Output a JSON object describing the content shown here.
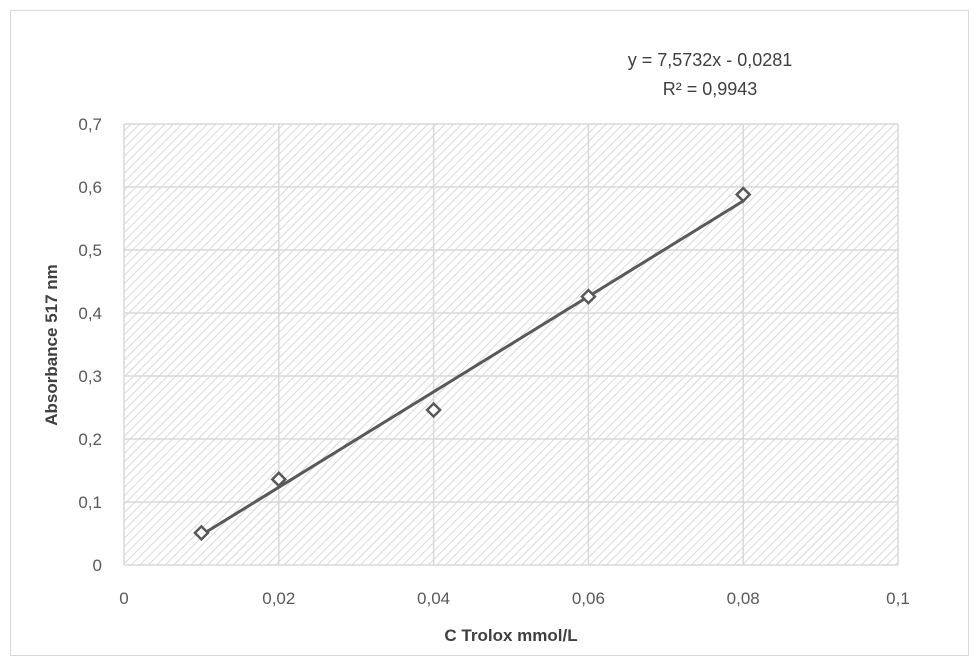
{
  "chart_data": {
    "type": "scatter",
    "xlabel": "C Trolox mmol/L",
    "ylabel": "Absorbance 517 nm",
    "xlim": [
      0,
      0.1
    ],
    "ylim": [
      0,
      0.7
    ],
    "x_ticks": [
      0,
      0.02,
      0.04,
      0.06,
      0.08,
      0.1
    ],
    "y_ticks": [
      0,
      0.1,
      0.2,
      0.3,
      0.4,
      0.5,
      0.6,
      0.7
    ],
    "x_tick_labels": [
      "0",
      "0,02",
      "0,04",
      "0,06",
      "0,08",
      "0,1"
    ],
    "y_tick_labels": [
      "0",
      "0,1",
      "0,2",
      "0,3",
      "0,4",
      "0,5",
      "0,6",
      "0,7"
    ],
    "grid": true,
    "plot_area_pattern": "diagonal-hatch",
    "series": [
      {
        "marker": "diamond-open",
        "color": "#595959",
        "points": [
          {
            "x": 0.01,
            "y": 0.051
          },
          {
            "x": 0.02,
            "y": 0.136
          },
          {
            "x": 0.04,
            "y": 0.246
          },
          {
            "x": 0.06,
            "y": 0.426
          },
          {
            "x": 0.08,
            "y": 0.588
          }
        ],
        "trendline": {
          "type": "linear",
          "slope": 7.5732,
          "intercept": -0.0281,
          "x_range": [
            0.01,
            0.08
          ],
          "color": "#595959"
        }
      }
    ],
    "annotations": {
      "equation": "y = 7,5732x - 0,0281",
      "r_squared": "R² = 0,9943"
    }
  }
}
